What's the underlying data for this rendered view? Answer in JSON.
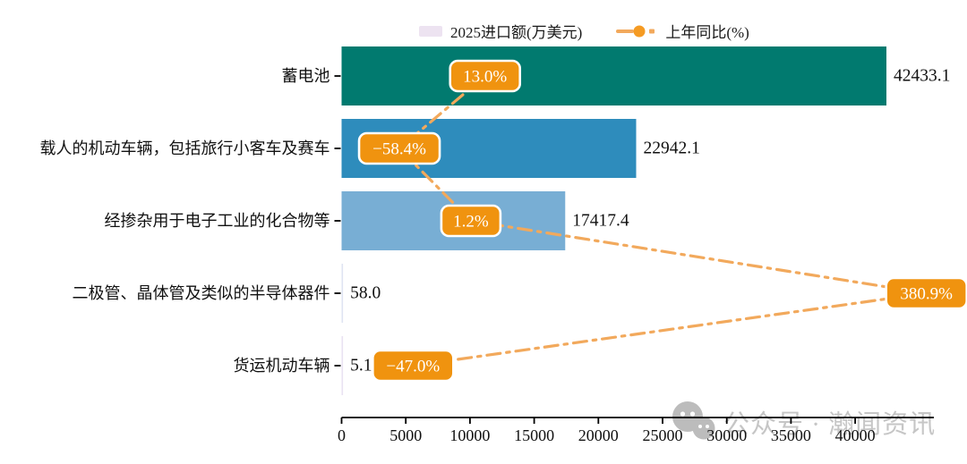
{
  "legend": {
    "bar_label": "2025进口额(万美元)",
    "line_label": "上年同比(%)"
  },
  "watermark": {
    "text": "公众号 · 瀚闻资讯"
  },
  "colors": {
    "bar_palette": [
      "#017a6f",
      "#2e8cbc",
      "#78aed4",
      "#dfe4f2",
      "#e9e2f2"
    ],
    "legend_swatch": "#ede3f1",
    "line": "#f2a95c",
    "marker": "#f59b23",
    "badge_fill": "#f0930f",
    "badge_border": "#ffffff",
    "badge_text": "#ffffff",
    "axis": "#000000",
    "text": "#111111",
    "watermark_gray": "#bcbcbc"
  },
  "chart_data": {
    "type": "bar",
    "orientation": "horizontal",
    "title": "",
    "xlabel": "",
    "ylabel": "",
    "grid": false,
    "legend_position": "top",
    "categories": [
      "蓄电池",
      "载人的机动车辆，包括旅行小客车及赛车",
      "经掺杂用于电子工业的化合物等",
      "二极管、晶体管及类似的半导体器件",
      "货运机动车辆"
    ],
    "series": [
      {
        "name": "2025进口额(万美元)",
        "type": "bar",
        "values": [
          42433.1,
          22942.1,
          17417.4,
          58.0,
          5.1
        ]
      },
      {
        "name": "上年同比(%)",
        "type": "line",
        "values": [
          13.0,
          -58.4,
          1.2,
          380.9,
          -47.0
        ]
      }
    ],
    "value_labels": [
      "42433.1",
      "22942.1",
      "17417.4",
      "58.0",
      "5.1"
    ],
    "pct_labels": [
      "13.0%",
      "−58.4%",
      "1.2%",
      "380.9%",
      "−47.0%"
    ],
    "x_ticks": [
      0,
      5000,
      10000,
      15000,
      20000,
      25000,
      30000,
      35000,
      40000
    ],
    "xlim": [
      0,
      46000
    ],
    "pct_axis_range": [
      -80,
      415
    ]
  }
}
